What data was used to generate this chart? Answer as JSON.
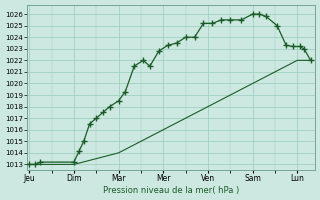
{
  "xlabel": "Pression niveau de la mer( hPa )",
  "bg_color": "#cce8e0",
  "grid_color": "#99ccbb",
  "line_color": "#1a5c28",
  "ylim": [
    1012.5,
    1026.8
  ],
  "yticks": [
    1013,
    1014,
    1015,
    1016,
    1017,
    1018,
    1019,
    1020,
    1021,
    1022,
    1023,
    1024,
    1025,
    1026
  ],
  "day_labels": [
    "Jeu",
    "Dim",
    "Mar",
    "Mer",
    "Ven",
    "Sam",
    "Lun"
  ],
  "day_positions": [
    0,
    1,
    2,
    3,
    4,
    5,
    6
  ],
  "xlim": [
    -0.05,
    6.4
  ],
  "line1_x": [
    0.0,
    0.13,
    0.25,
    1.0,
    1.12,
    1.22,
    1.35,
    1.5,
    1.65,
    1.8,
    2.0,
    2.15,
    2.35,
    2.55,
    2.7,
    2.9,
    3.1,
    3.3,
    3.5,
    3.7,
    3.9,
    4.1,
    4.3,
    4.5,
    4.75,
    5.0,
    5.15,
    5.3,
    5.55,
    5.75,
    5.9,
    6.05,
    6.15,
    6.3
  ],
  "line1_y": [
    1013,
    1013,
    1013.2,
    1013.2,
    1014.2,
    1015.0,
    1016.5,
    1017.0,
    1017.5,
    1018.0,
    1018.5,
    1019.3,
    1021.5,
    1022.0,
    1021.5,
    1022.8,
    1023.3,
    1023.5,
    1024.0,
    1024.0,
    1025.2,
    1025.2,
    1025.5,
    1025.5,
    1025.5,
    1026.0,
    1026.0,
    1025.8,
    1025.0,
    1023.3,
    1023.2,
    1023.2,
    1023.0,
    1022.0
  ],
  "line2_x": [
    0.0,
    0.13,
    0.25,
    1.0,
    1.5,
    2.0,
    2.5,
    3.0,
    3.5,
    4.0,
    4.5,
    5.0,
    5.5,
    6.0,
    6.3
  ],
  "line2_y": [
    1013,
    1013,
    1013,
    1013.0,
    1013.5,
    1014.0,
    1015.0,
    1016.0,
    1017.0,
    1018.0,
    1019.0,
    1020.0,
    1021.0,
    1022.0,
    1022.0
  ]
}
